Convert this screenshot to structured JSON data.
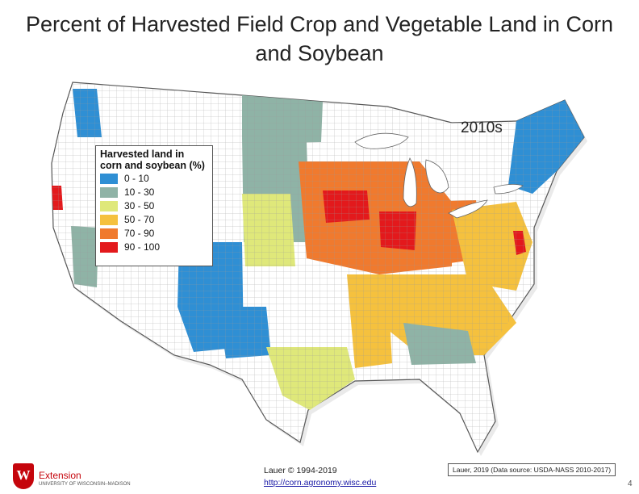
{
  "title": "Percent of Harvested Field Crop and Vegetable Land in Corn and Soybean",
  "decade_label": "2010s",
  "legend": {
    "title_line1": "Harvested land in",
    "title_line2": "corn and soybean (%)",
    "classes": [
      {
        "label": "0 -  10",
        "color": "#2f8fd4"
      },
      {
        "label": "10 - 30",
        "color": "#8fb3a6"
      },
      {
        "label": "30 - 50",
        "color": "#dfe87a"
      },
      {
        "label": "50 - 70",
        "color": "#f5c13e"
      },
      {
        "label": "70 - 90",
        "color": "#f07a2e"
      },
      {
        "label": "90 - 100",
        "color": "#e3191c"
      }
    ]
  },
  "footer": {
    "logo_letter": "W",
    "logo_word": "Extension",
    "logo_sub": "UNIVERSITY OF WISCONSIN–MADISON",
    "credit_line1": "Lauer © 1994-2019",
    "credit_link": "http://corn.agronomy.wisc.edu",
    "source": "Lauer, 2019 (Data source: USDA-NASS 2010-2017)",
    "page_number": "4"
  }
}
